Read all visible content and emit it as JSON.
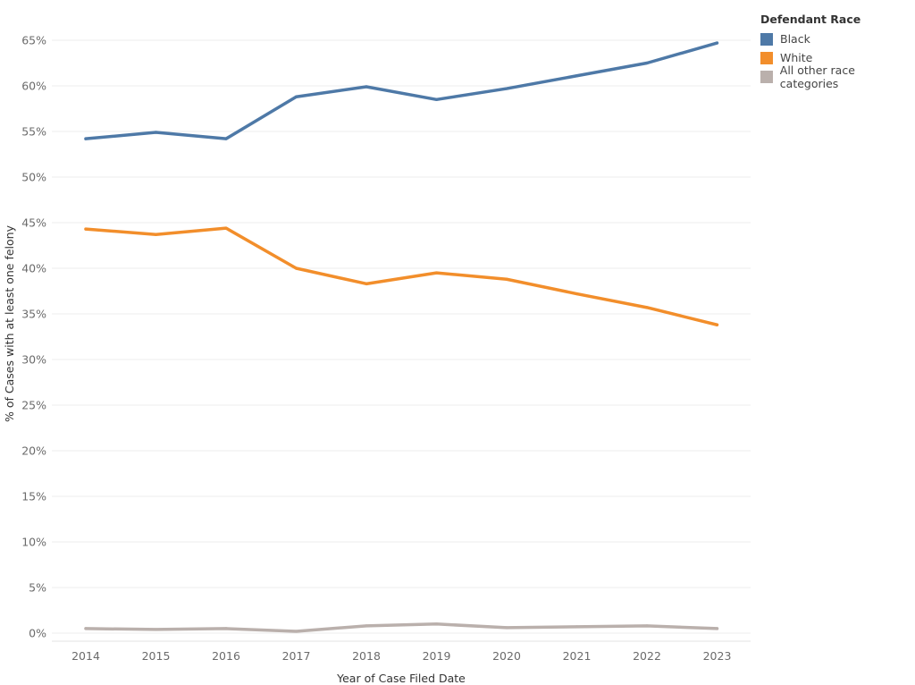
{
  "chart_data": {
    "type": "line",
    "xlabel": "Year of Case Filed Date",
    "ylabel": "% of Cases with at least one felony",
    "x": [
      "2014",
      "2015",
      "2016",
      "2017",
      "2018",
      "2019",
      "2020",
      "2021",
      "2022",
      "2023"
    ],
    "y_ticks": [
      "0%",
      "5%",
      "10%",
      "15%",
      "20%",
      "25%",
      "30%",
      "35%",
      "40%",
      "45%",
      "50%",
      "55%",
      "60%",
      "65%"
    ],
    "ylim": [
      0,
      66
    ],
    "grid": true,
    "legend": {
      "title": "Defendant Race",
      "placement": "right"
    },
    "series": [
      {
        "name": "Black",
        "color": "#4e79a7",
        "values": [
          54.2,
          54.9,
          54.2,
          58.8,
          59.9,
          58.5,
          59.7,
          61.1,
          62.5,
          64.7
        ]
      },
      {
        "name": "White",
        "color": "#f28e2b",
        "values": [
          44.3,
          43.7,
          44.4,
          40.0,
          38.3,
          39.5,
          38.8,
          37.2,
          35.7,
          33.8
        ]
      },
      {
        "name": "All other race categories",
        "color": "#bab0ac",
        "values": [
          0.5,
          0.4,
          0.5,
          0.2,
          0.8,
          1.0,
          0.6,
          0.7,
          0.8,
          0.5
        ]
      }
    ]
  }
}
